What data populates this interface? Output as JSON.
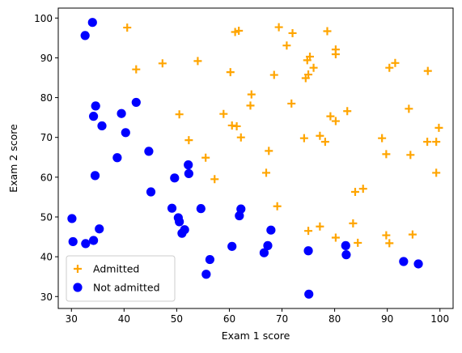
{
  "chart_data": {
    "type": "scatter",
    "xlabel": "Exam 1 score",
    "ylabel": "Exam 2 score",
    "xlim": [
      27.5,
      102.5
    ],
    "ylim": [
      27,
      102.5
    ],
    "xticks": [
      30,
      40,
      50,
      60,
      70,
      80,
      90,
      100
    ],
    "yticks": [
      30,
      40,
      50,
      60,
      70,
      80,
      90,
      100
    ],
    "grid": false,
    "legend_position": "lower-left",
    "series": [
      {
        "name": "Admitted",
        "marker": "plus",
        "color": "#FFA500",
        "points": [
          [
            40.6,
            97.6
          ],
          [
            61.1,
            96.5
          ],
          [
            61.8,
            96.8
          ],
          [
            69.4,
            97.7
          ],
          [
            72.0,
            96.2
          ],
          [
            78.6,
            96.7
          ],
          [
            80.2,
            92.1
          ],
          [
            80.2,
            90.9
          ],
          [
            70.9,
            93.1
          ],
          [
            75.3,
            90.3
          ],
          [
            74.8,
            89.4
          ],
          [
            76.0,
            87.5
          ],
          [
            75.0,
            85.8
          ],
          [
            74.5,
            84.9
          ],
          [
            90.4,
            87.5
          ],
          [
            91.5,
            88.7
          ],
          [
            97.7,
            86.7
          ],
          [
            42.3,
            87.1
          ],
          [
            47.3,
            88.6
          ],
          [
            54.0,
            89.2
          ],
          [
            60.2,
            86.4
          ],
          [
            68.5,
            85.7
          ],
          [
            64.2,
            80.8
          ],
          [
            64.0,
            78.0
          ],
          [
            71.8,
            78.5
          ],
          [
            94.1,
            77.2
          ],
          [
            82.4,
            76.6
          ],
          [
            50.5,
            75.8
          ],
          [
            58.9,
            75.9
          ],
          [
            79.2,
            75.3
          ],
          [
            80.2,
            74.1
          ],
          [
            60.5,
            73.0
          ],
          [
            61.4,
            72.8
          ],
          [
            62.2,
            70.0
          ],
          [
            74.2,
            69.8
          ],
          [
            52.3,
            69.3
          ],
          [
            77.2,
            70.4
          ],
          [
            78.2,
            68.9
          ],
          [
            89.0,
            69.8
          ],
          [
            97.6,
            68.9
          ],
          [
            99.3,
            68.9
          ],
          [
            99.8,
            72.4
          ],
          [
            55.5,
            64.9
          ],
          [
            67.5,
            66.6
          ],
          [
            89.8,
            65.8
          ],
          [
            94.4,
            65.6
          ],
          [
            57.2,
            59.5
          ],
          [
            67.0,
            61.1
          ],
          [
            99.3,
            61.1
          ],
          [
            69.1,
            52.7
          ],
          [
            85.4,
            57.1
          ],
          [
            83.9,
            56.3
          ],
          [
            83.5,
            48.4
          ],
          [
            77.2,
            47.6
          ],
          [
            75.0,
            46.5
          ],
          [
            80.2,
            44.8
          ],
          [
            84.4,
            43.5
          ],
          [
            89.8,
            45.4
          ],
          [
            90.4,
            43.4
          ],
          [
            94.8,
            45.6
          ]
        ]
      },
      {
        "name": "Not admitted",
        "marker": "circle",
        "color": "#0000FF",
        "points": [
          [
            34.0,
            98.9
          ],
          [
            32.6,
            95.6
          ],
          [
            34.6,
            77.9
          ],
          [
            34.2,
            75.3
          ],
          [
            35.8,
            72.9
          ],
          [
            39.5,
            76.0
          ],
          [
            42.3,
            78.8
          ],
          [
            40.3,
            71.2
          ],
          [
            38.7,
            64.9
          ],
          [
            44.7,
            66.5
          ],
          [
            34.5,
            60.4
          ],
          [
            52.2,
            63.1
          ],
          [
            52.3,
            60.9
          ],
          [
            49.6,
            59.8
          ],
          [
            45.1,
            56.3
          ],
          [
            49.1,
            52.2
          ],
          [
            54.6,
            52.1
          ],
          [
            62.2,
            52.0
          ],
          [
            61.9,
            50.3
          ],
          [
            50.3,
            49.8
          ],
          [
            50.5,
            48.8
          ],
          [
            30.1,
            49.6
          ],
          [
            35.3,
            47.0
          ],
          [
            51.5,
            46.8
          ],
          [
            51.0,
            45.9
          ],
          [
            67.9,
            46.7
          ],
          [
            30.3,
            43.8
          ],
          [
            32.7,
            43.3
          ],
          [
            34.2,
            44.1
          ],
          [
            60.5,
            42.6
          ],
          [
            67.3,
            42.8
          ],
          [
            66.6,
            41.0
          ],
          [
            75.0,
            41.5
          ],
          [
            82.1,
            42.8
          ],
          [
            82.2,
            40.5
          ],
          [
            56.3,
            39.3
          ],
          [
            55.6,
            35.6
          ],
          [
            93.1,
            38.8
          ],
          [
            95.9,
            38.2
          ],
          [
            75.1,
            30.6
          ]
        ]
      }
    ]
  }
}
